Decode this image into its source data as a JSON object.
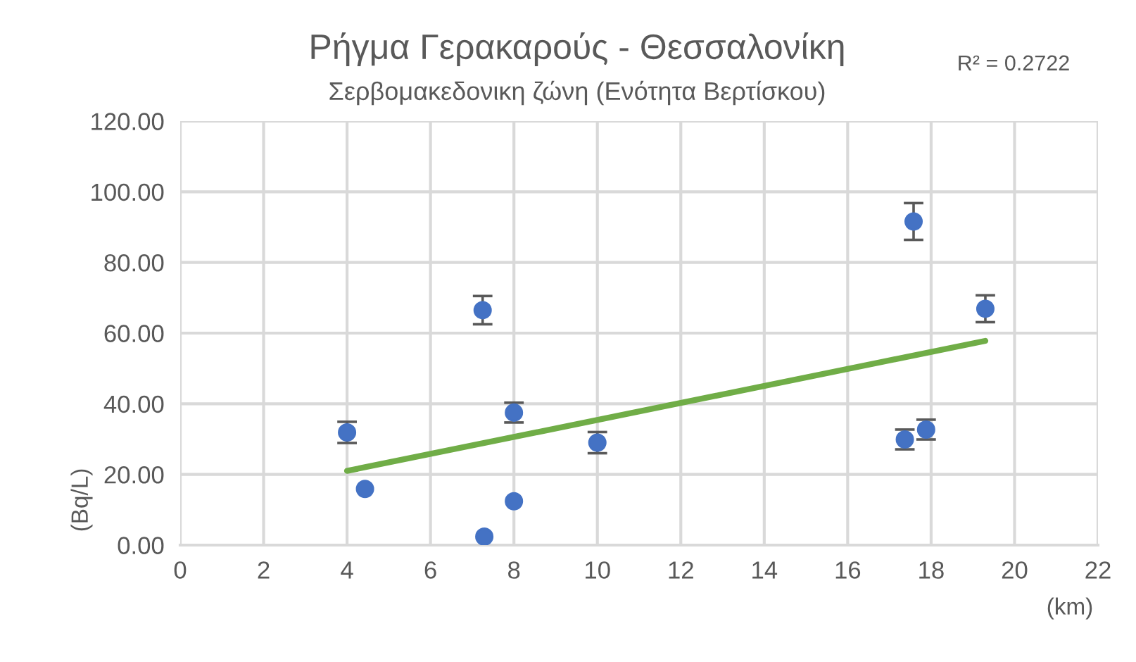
{
  "chart_data": {
    "type": "scatter",
    "title": "Ρήγμα Γερακαρούς - Θεσσαλονίκη",
    "subtitle": "Σερβομακεδονικη ζώνη (Ενότητα Βερτίσκου)",
    "xlabel": "(km)",
    "ylabel": "(Bq/L)",
    "annotations": [
      "R² = 0.2722"
    ],
    "series": [
      {
        "marker": "circle",
        "color": "#4472c4",
        "x": [
          4.0,
          4.43,
          7.25,
          7.29,
          8.0,
          8.0,
          10.0,
          17.37,
          17.58,
          17.88,
          19.3
        ],
        "values": [
          31.9,
          15.9,
          66.5,
          2.4,
          37.5,
          12.4,
          29.0,
          29.9,
          91.6,
          32.7,
          66.9
        ],
        "errors": [
          3,
          null,
          4,
          null,
          2.8,
          null,
          3,
          2.8,
          5.2,
          2.8,
          3.8
        ]
      },
      {
        "type": "line",
        "marker": "none",
        "color": "#70ad47",
        "x": [
          4.0,
          19.3
        ],
        "values": [
          21.0,
          57.8
        ]
      }
    ],
    "xlim": [
      0,
      22
    ],
    "xticks": [
      0,
      2,
      4,
      6,
      8,
      10,
      12,
      14,
      16,
      18,
      20,
      22
    ],
    "ylim": [
      0,
      120
    ],
    "yticks": [
      {
        "value": 0,
        "label": "0.00"
      },
      {
        "value": 20,
        "label": "20.00"
      },
      {
        "value": 40,
        "label": "40.00"
      },
      {
        "value": 60,
        "label": "60.00"
      },
      {
        "value": 80,
        "label": "80.00"
      },
      {
        "value": 100,
        "label": "100.00"
      },
      {
        "value": 120,
        "label": "120.00"
      }
    ],
    "grid": true
  }
}
